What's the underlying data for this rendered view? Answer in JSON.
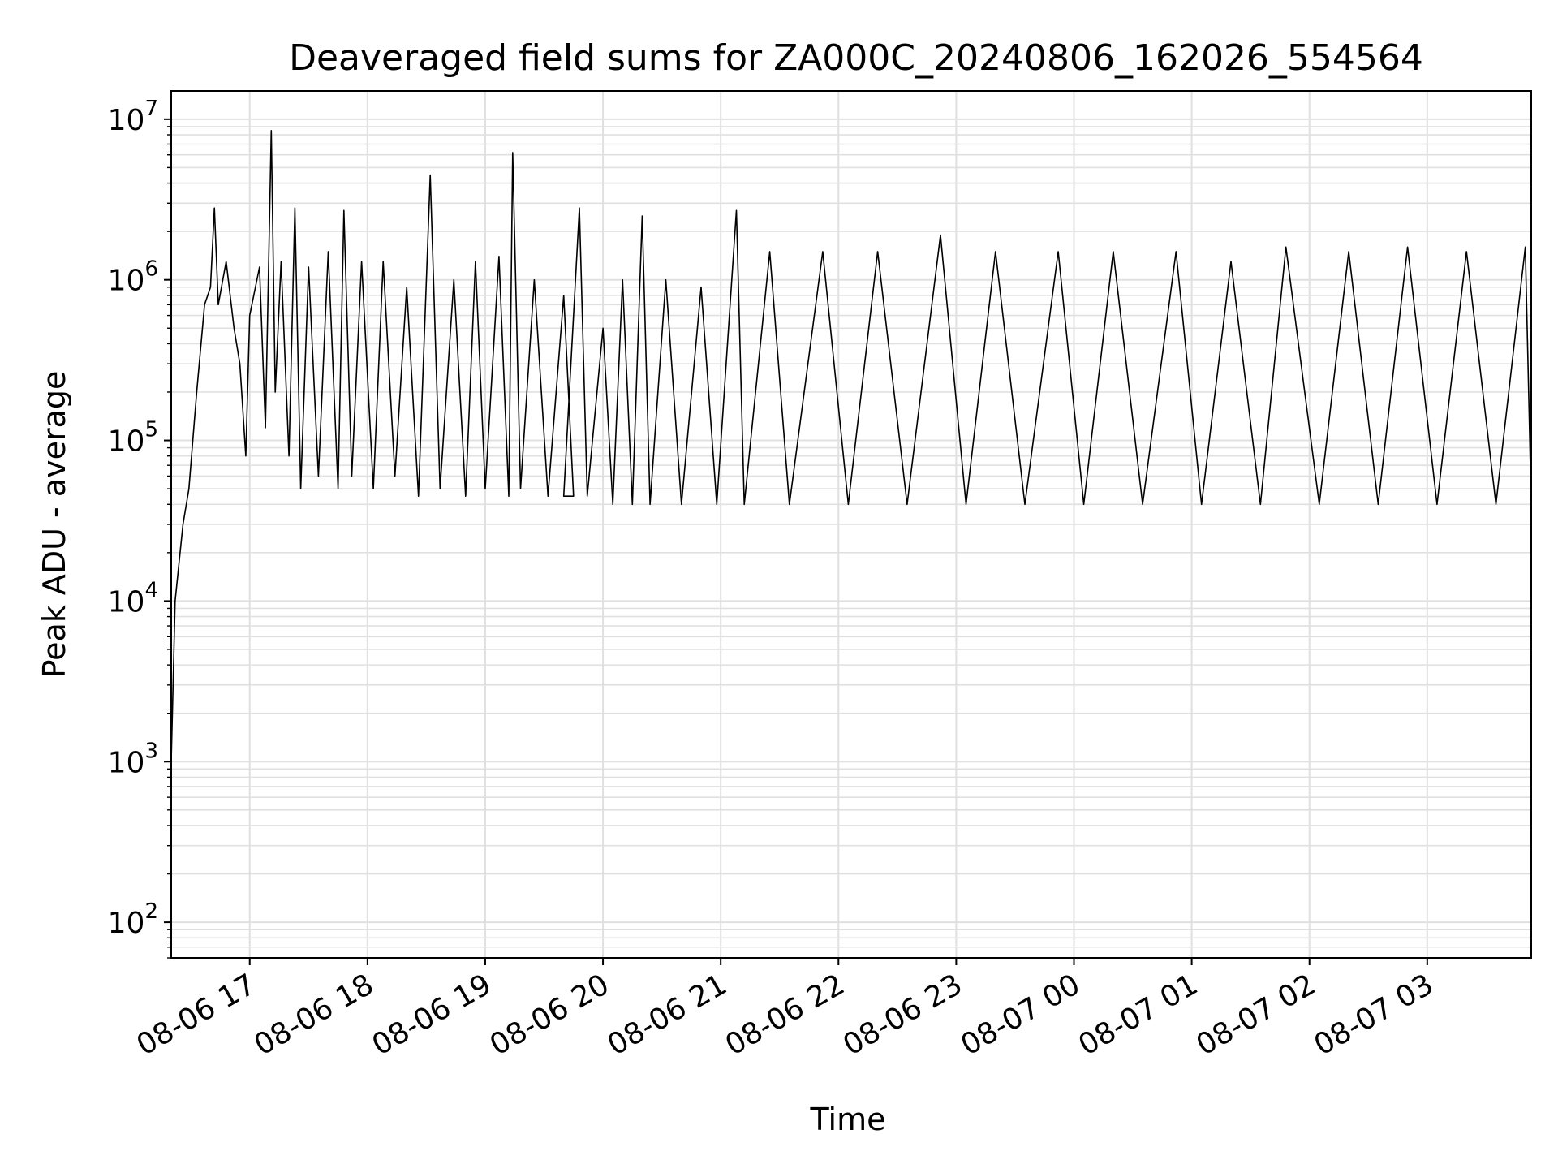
{
  "chart_data": {
    "type": "line",
    "title": "Deaveraged field sums for ZA000C_20240806_162026_554564",
    "xlabel": "Time",
    "ylabel": "Peak ADU - average",
    "yscale": "log",
    "ylim": [
      60,
      15000000
    ],
    "xlim": [
      "2024-08-06 16:20",
      "2024-08-07 03:53"
    ],
    "grid": true,
    "legend": "none",
    "line_color": "#000000",
    "grid_color": "#e0e0e0",
    "x_ticks": [
      {
        "value": "2024-08-06 17:00",
        "label": "08-06 17"
      },
      {
        "value": "2024-08-06 18:00",
        "label": "08-06 18"
      },
      {
        "value": "2024-08-06 19:00",
        "label": "08-06 19"
      },
      {
        "value": "2024-08-06 20:00",
        "label": "08-06 20"
      },
      {
        "value": "2024-08-06 21:00",
        "label": "08-06 21"
      },
      {
        "value": "2024-08-06 22:00",
        "label": "08-06 22"
      },
      {
        "value": "2024-08-06 23:00",
        "label": "08-06 23"
      },
      {
        "value": "2024-08-07 00:00",
        "label": "08-07 00"
      },
      {
        "value": "2024-08-07 01:00",
        "label": "08-07 01"
      },
      {
        "value": "2024-08-07 02:00",
        "label": "08-07 02"
      },
      {
        "value": "2024-08-07 03:00",
        "label": "08-07 03"
      }
    ],
    "y_ticks": [
      {
        "value": 100,
        "base": "10",
        "exp": "2"
      },
      {
        "value": 1000,
        "base": "10",
        "exp": "3"
      },
      {
        "value": 10000,
        "base": "10",
        "exp": "4"
      },
      {
        "value": 100000,
        "base": "10",
        "exp": "5"
      },
      {
        "value": 1000000,
        "base": "10",
        "exp": "6"
      },
      {
        "value": 10000000,
        "base": "10",
        "exp": "7"
      }
    ],
    "series": [
      {
        "points": [
          [
            "2024-08-06 16:20",
            1000
          ],
          [
            "2024-08-06 16:22",
            10000
          ],
          [
            "2024-08-06 16:26",
            30000
          ],
          [
            "2024-08-06 16:29",
            50000
          ],
          [
            "2024-08-06 16:33",
            200000
          ],
          [
            "2024-08-06 16:37",
            700000
          ],
          [
            "2024-08-06 16:40",
            900000
          ],
          [
            "2024-08-06 16:42",
            2800000
          ],
          [
            "2024-08-06 16:44",
            700000
          ],
          [
            "2024-08-06 16:48",
            1300000
          ],
          [
            "2024-08-06 16:52",
            500000
          ],
          [
            "2024-08-06 16:55",
            300000
          ],
          [
            "2024-08-06 16:58",
            80000
          ],
          [
            "2024-08-06 17:00",
            600000
          ],
          [
            "2024-08-06 17:05",
            1200000
          ],
          [
            "2024-08-06 17:08",
            120000
          ],
          [
            "2024-08-06 17:11",
            8500000
          ],
          [
            "2024-08-06 17:13",
            200000
          ],
          [
            "2024-08-06 17:16",
            1300000
          ],
          [
            "2024-08-06 17:20",
            80000
          ],
          [
            "2024-08-06 17:23",
            2800000
          ],
          [
            "2024-08-06 17:26",
            50000
          ],
          [
            "2024-08-06 17:30",
            1200000
          ],
          [
            "2024-08-06 17:35",
            60000
          ],
          [
            "2024-08-06 17:40",
            1500000
          ],
          [
            "2024-08-06 17:45",
            50000
          ],
          [
            "2024-08-06 17:48",
            2700000
          ],
          [
            "2024-08-06 17:52",
            60000
          ],
          [
            "2024-08-06 17:57",
            1300000
          ],
          [
            "2024-08-06 18:03",
            50000
          ],
          [
            "2024-08-06 18:08",
            1300000
          ],
          [
            "2024-08-06 18:14",
            60000
          ],
          [
            "2024-08-06 18:20",
            900000
          ],
          [
            "2024-08-06 18:26",
            45000
          ],
          [
            "2024-08-06 18:32",
            4500000
          ],
          [
            "2024-08-06 18:37",
            50000
          ],
          [
            "2024-08-06 18:44",
            1000000
          ],
          [
            "2024-08-06 18:50",
            45000
          ],
          [
            "2024-08-06 18:55",
            1300000
          ],
          [
            "2024-08-06 19:00",
            50000
          ],
          [
            "2024-08-06 19:07",
            1400000
          ],
          [
            "2024-08-06 19:12",
            45000
          ],
          [
            "2024-08-06 19:14",
            6200000
          ],
          [
            "2024-08-06 19:18",
            50000
          ],
          [
            "2024-08-06 19:25",
            1000000
          ],
          [
            "2024-08-06 19:32",
            45000
          ],
          [
            "2024-08-06 19:40",
            800000
          ],
          [
            "2024-08-06 19:45",
            45000
          ],
          [
            "2024-08-06 19:40",
            45000
          ],
          [
            "2024-08-06 19:48",
            2800000
          ],
          [
            "2024-08-06 19:52",
            45000
          ],
          [
            "2024-08-06 20:00",
            500000
          ],
          [
            "2024-08-06 20:05",
            40000
          ],
          [
            "2024-08-06 20:10",
            1000000
          ],
          [
            "2024-08-06 20:15",
            40000
          ],
          [
            "2024-08-06 20:20",
            2500000
          ],
          [
            "2024-08-06 20:24",
            40000
          ],
          [
            "2024-08-06 20:32",
            1000000
          ],
          [
            "2024-08-06 20:40",
            40000
          ],
          [
            "2024-08-06 20:50",
            900000
          ],
          [
            "2024-08-06 20:58",
            40000
          ],
          [
            "2024-08-06 21:08",
            2700000
          ],
          [
            "2024-08-06 21:12",
            40000
          ],
          [
            "2024-08-06 21:25",
            1500000
          ],
          [
            "2024-08-06 21:35",
            40000
          ],
          [
            "2024-08-06 21:52",
            1500000
          ],
          [
            "2024-08-06 22:05",
            40000
          ],
          [
            "2024-08-06 22:20",
            1500000
          ],
          [
            "2024-08-06 22:35",
            40000
          ],
          [
            "2024-08-06 22:52",
            1900000
          ],
          [
            "2024-08-06 23:05",
            40000
          ],
          [
            "2024-08-06 23:20",
            1500000
          ],
          [
            "2024-08-06 23:35",
            40000
          ],
          [
            "2024-08-06 23:52",
            1500000
          ],
          [
            "2024-08-07 00:05",
            40000
          ],
          [
            "2024-08-07 00:20",
            1500000
          ],
          [
            "2024-08-07 00:35",
            40000
          ],
          [
            "2024-08-07 00:52",
            1500000
          ],
          [
            "2024-08-07 01:05",
            40000
          ],
          [
            "2024-08-07 01:20",
            1300000
          ],
          [
            "2024-08-07 01:35",
            40000
          ],
          [
            "2024-08-07 01:48",
            1600000
          ],
          [
            "2024-08-07 02:05",
            40000
          ],
          [
            "2024-08-07 02:20",
            1500000
          ],
          [
            "2024-08-07 02:35",
            40000
          ],
          [
            "2024-08-07 02:50",
            1600000
          ],
          [
            "2024-08-07 03:05",
            40000
          ],
          [
            "2024-08-07 03:20",
            1500000
          ],
          [
            "2024-08-07 03:35",
            40000
          ],
          [
            "2024-08-07 03:50",
            1600000
          ],
          [
            "2024-08-07 03:53",
            40000
          ]
        ]
      }
    ]
  }
}
